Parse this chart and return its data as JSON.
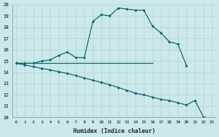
{
  "xlabel": "Humidex (Indice chaleur)",
  "bg_color": "#cce9e9",
  "grid_color": "#b0d0d0",
  "line_color": "#006666",
  "xlim": [
    -0.5,
    23.5
  ],
  "ylim": [
    10,
    20
  ],
  "xticks": [
    0,
    1,
    2,
    3,
    4,
    5,
    6,
    7,
    8,
    9,
    10,
    11,
    12,
    13,
    14,
    15,
    16,
    17,
    18,
    19,
    20,
    21,
    22,
    23
  ],
  "yticks": [
    10,
    11,
    12,
    13,
    14,
    15,
    16,
    17,
    18,
    19,
    20
  ],
  "curve1_x": [
    0,
    1,
    2,
    3,
    4,
    5,
    6,
    7,
    8,
    9,
    10,
    11,
    12,
    13,
    14,
    15,
    16,
    17,
    18,
    19,
    20
  ],
  "curve1_y": [
    14.8,
    14.8,
    14.8,
    15.0,
    15.1,
    15.5,
    15.8,
    15.3,
    15.3,
    18.5,
    19.1,
    19.0,
    19.7,
    19.6,
    19.5,
    19.5,
    18.1,
    17.5,
    16.7,
    16.5,
    14.6
  ],
  "curve2_x": [
    0,
    1,
    2,
    3,
    4,
    5,
    6,
    7,
    8,
    9,
    10,
    11,
    12,
    13,
    14,
    15,
    16
  ],
  "curve2_y": [
    14.8,
    14.8,
    14.8,
    14.8,
    14.8,
    14.8,
    14.8,
    14.8,
    14.8,
    14.8,
    14.8,
    14.8,
    14.8,
    14.8,
    14.8,
    14.8,
    14.8
  ],
  "curve3_x": [
    0,
    1,
    2,
    3,
    4,
    5,
    6,
    7,
    8,
    9,
    10,
    11,
    12,
    13,
    14,
    15,
    16,
    17,
    18,
    19,
    20,
    21,
    22,
    23
  ],
  "curve3_y": [
    14.8,
    14.65,
    14.5,
    14.35,
    14.2,
    14.05,
    13.9,
    13.7,
    13.5,
    13.3,
    13.1,
    12.9,
    12.65,
    12.4,
    12.15,
    12.0,
    11.8,
    11.6,
    11.5,
    11.3,
    11.1,
    11.5,
    10.05,
    9.9
  ]
}
